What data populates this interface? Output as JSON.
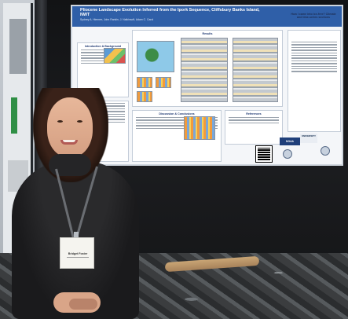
{
  "poster": {
    "title": "Pliocene Landscape Evolution Inferred from the Ipork Sequence, Cliffsbury Banks Island, NWT",
    "authors": "Sydney A. Hiemrer, John Rankin, J. Nalkinsoft, Adam C. Carol",
    "aside_title": "How I came into ice-free? Climate and time-series sections",
    "sections": [
      "Introduction & Background",
      "Results",
      "Discussion & Conclusions",
      "References"
    ],
    "logos": [
      "NOAA",
      "UNIVERSITY"
    ]
  },
  "badge": {
    "name": "Bridget Foster"
  }
}
